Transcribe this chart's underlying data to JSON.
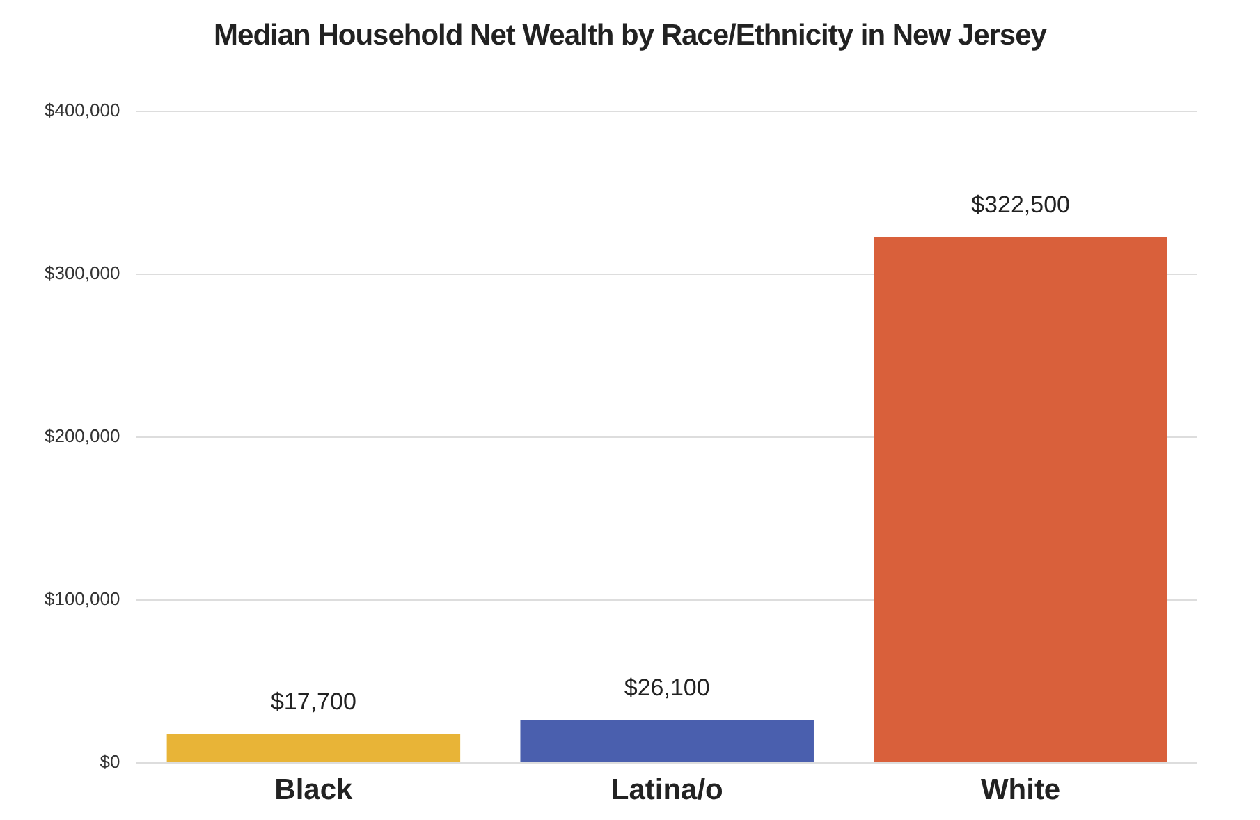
{
  "chart_data": {
    "type": "bar",
    "title": "Median Household Net Wealth by Race/Ethnicity in New Jersey",
    "categories": [
      "Black",
      "Latina/o",
      "White"
    ],
    "values": [
      17700,
      26100,
      322500
    ],
    "colors": [
      "#e8b437",
      "#4a5fae",
      "#d9603b"
    ],
    "value_labels": [
      "$17,700",
      "$26,100",
      "$322,500"
    ],
    "ylim": [
      0,
      400000
    ],
    "yticks": [
      {
        "value": 0,
        "label": "$0"
      },
      {
        "value": 100000,
        "label": "$100,000"
      },
      {
        "value": 200000,
        "label": "$200,000"
      },
      {
        "value": 300000,
        "label": "$300,000"
      },
      {
        "value": 400000,
        "label": "$400,000"
      }
    ],
    "grid": "y"
  }
}
